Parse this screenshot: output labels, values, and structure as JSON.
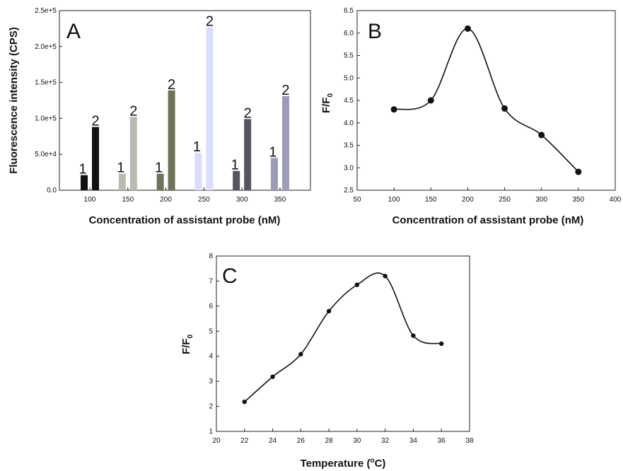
{
  "chart_data": [
    {
      "panel": "A",
      "type": "bar",
      "xlabel": "Concentration of assistant probe (nM)",
      "ylabel": "Fluorescence intensity (CPS)",
      "ylim": [
        0,
        250000
      ],
      "yticks": [
        "0.0",
        "5.0e+4",
        "1.0e+5",
        "1.5e+5",
        "2.0e+5",
        "2.5e+5"
      ],
      "categories": [
        "100",
        "150",
        "200",
        "250",
        "300",
        "350"
      ],
      "series": [
        {
          "name": "1",
          "values": [
            21000,
            23000,
            23000,
            52000,
            27000,
            45000
          ],
          "colors": [
            "#111111",
            "#b8bcb0",
            "#6e7358",
            "#dcdcff",
            "#55555f",
            "#9c9cba"
          ]
        },
        {
          "name": "2",
          "values": [
            88000,
            102000,
            139000,
            227000,
            99000,
            131000
          ],
          "colors": [
            "#111111",
            "#b8bcb0",
            "#6e7358",
            "#dcdcff",
            "#55555f",
            "#9c9cba"
          ]
        }
      ],
      "grid": false
    },
    {
      "panel": "B",
      "type": "line",
      "xlabel": "Concentration of assistant probe (nM)",
      "ylabel": "F/F0",
      "xlim": [
        50,
        400
      ],
      "ylim": [
        2.5,
        6.5
      ],
      "xticks": [
        "50",
        "100",
        "150",
        "200",
        "250",
        "300",
        "350",
        "400"
      ],
      "yticks": [
        "2.5",
        "3.0",
        "3.5",
        "4.0",
        "4.5",
        "5.0",
        "5.5",
        "6.0",
        "6.5"
      ],
      "x": [
        100,
        150,
        200,
        250,
        300,
        350
      ],
      "y": [
        4.3,
        4.5,
        6.1,
        4.32,
        3.73,
        2.91
      ],
      "grid": false
    },
    {
      "panel": "C",
      "type": "line",
      "xlabel": "Temperature (oC)",
      "ylabel": "F/F0",
      "xlim": [
        20,
        38
      ],
      "ylim": [
        1,
        8
      ],
      "xticks": [
        "20",
        "22",
        "24",
        "26",
        "28",
        "30",
        "32",
        "34",
        "36",
        "38"
      ],
      "yticks": [
        "1",
        "2",
        "3",
        "4",
        "5",
        "6",
        "7",
        "8"
      ],
      "x": [
        22,
        24,
        26,
        28,
        30,
        32,
        34,
        36
      ],
      "y": [
        2.18,
        3.18,
        4.08,
        5.8,
        6.85,
        7.2,
        4.82,
        4.5
      ],
      "grid": false
    }
  ]
}
